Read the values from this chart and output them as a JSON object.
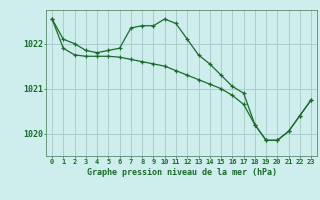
{
  "title": "Graphe pression niveau de la mer (hPa)",
  "background_color": "#ceeeed",
  "grid_color": "#aacccc",
  "line_color": "#1a6b2a",
  "xlim": [
    -0.5,
    23.5
  ],
  "ylim": [
    1019.5,
    1022.75
  ],
  "yticks": [
    1020,
    1021,
    1022
  ],
  "xtick_labels": [
    "0",
    "1",
    "2",
    "3",
    "4",
    "5",
    "6",
    "7",
    "8",
    "9",
    "10",
    "11",
    "12",
    "13",
    "14",
    "15",
    "16",
    "17",
    "18",
    "19",
    "20",
    "21",
    "22",
    "23"
  ],
  "series1_x": [
    0,
    1,
    2,
    3,
    4,
    5,
    6,
    7,
    8,
    9,
    10,
    11,
    12,
    13,
    14,
    15,
    16,
    17,
    18,
    19,
    20,
    21,
    22,
    23
  ],
  "series1_y": [
    1022.55,
    1022.1,
    1022.0,
    1021.85,
    1021.8,
    1021.85,
    1021.9,
    1022.35,
    1022.4,
    1022.4,
    1022.55,
    1022.45,
    1022.1,
    1021.75,
    1021.55,
    1021.3,
    1021.05,
    1020.9,
    1020.2,
    1019.85,
    1019.85,
    1020.05,
    1020.4,
    1020.75
  ],
  "series2_x": [
    0,
    1,
    2,
    3,
    4,
    5,
    6,
    7,
    8,
    9,
    10,
    11,
    12,
    13,
    14,
    15,
    16,
    17,
    18,
    19,
    20,
    21,
    22,
    23
  ],
  "series2_y": [
    1022.55,
    1021.9,
    1021.75,
    1021.72,
    1021.72,
    1021.72,
    1021.7,
    1021.65,
    1021.6,
    1021.55,
    1021.5,
    1021.4,
    1021.3,
    1021.2,
    1021.1,
    1021.0,
    1020.85,
    1020.65,
    1020.2,
    1019.85,
    1019.85,
    1020.05,
    1020.4,
    1020.75
  ]
}
